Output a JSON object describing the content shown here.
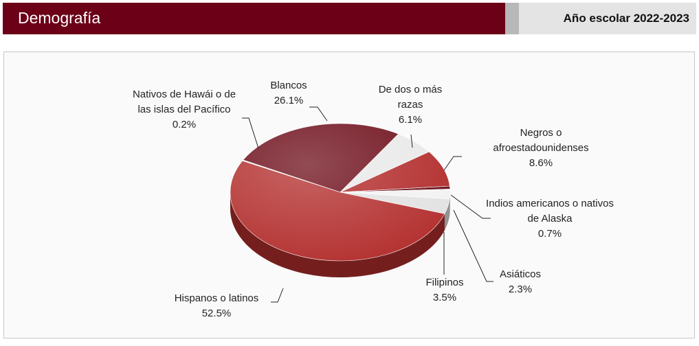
{
  "header": {
    "title": "Demografía",
    "subtitle": "Año escolar 2022-2023"
  },
  "chart_data": {
    "type": "pie",
    "categories": [
      "Blancos",
      "De dos o más razas",
      "Negros o afroestadounidenses",
      "Indios americanos o nativos de Alaska",
      "Asiáticos",
      "Filipinos",
      "Hispanos o latinos",
      "Nativos de Hawái o de las islas del Pacífico"
    ],
    "values": [
      26.1,
      6.1,
      8.6,
      0.7,
      2.3,
      3.5,
      52.5,
      0.2
    ],
    "value_labels": [
      "26.1%",
      "6.1%",
      "8.6%",
      "0.7%",
      "2.3%",
      "3.5%",
      "52.5%",
      "0.2%"
    ],
    "colors": [
      "#6e0f1b",
      "#e9e9e9",
      "#b22d2c",
      "#6e0f1b",
      "#f2f2f2",
      "#e2e2e2",
      "#b3302f",
      "#f7f7f7"
    ]
  }
}
